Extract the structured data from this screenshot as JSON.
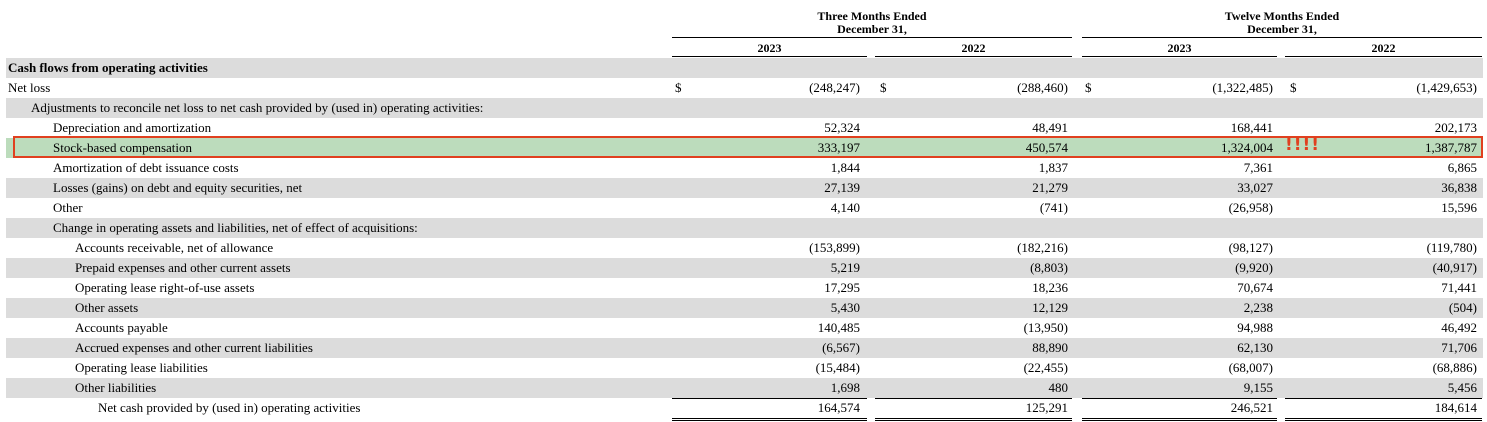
{
  "header": {
    "three_months": "Three Months Ended\nDecember 31,",
    "twelve_months": "Twelve Months Ended\nDecember 31,",
    "years": [
      "2023",
      "2022",
      "2023",
      "2022"
    ]
  },
  "currency_symbol": "$",
  "annotation_mark": "!!!!",
  "rows": [
    {
      "label": "Cash flows from operating activities",
      "indent": 0,
      "bold": true,
      "values": []
    },
    {
      "label": "Net loss",
      "indent": 0,
      "dollar": true,
      "values": [
        "(248,247)",
        "(288,460)",
        "(1,322,485)",
        "(1,429,653)"
      ]
    },
    {
      "label": "Adjustments to reconcile net loss to net cash provided by (used in) operating activities:",
      "indent": 1,
      "values": []
    },
    {
      "label": "Depreciation and amortization",
      "indent": 2,
      "values": [
        "52,324",
        "48,491",
        "168,441",
        "202,173"
      ]
    },
    {
      "label": "Stock-based compensation",
      "indent": 2,
      "highlight": true,
      "values": [
        "333,197",
        "450,574",
        "1,324,004",
        "1,387,787"
      ]
    },
    {
      "label": "Amortization of debt issuance costs",
      "indent": 2,
      "values": [
        "1,844",
        "1,837",
        "7,361",
        "6,865"
      ]
    },
    {
      "label": "Losses (gains) on debt and equity securities, net",
      "indent": 2,
      "values": [
        "27,139",
        "21,279",
        "33,027",
        "36,838"
      ]
    },
    {
      "label": "Other",
      "indent": 2,
      "values": [
        "4,140",
        "(741)",
        "(26,958)",
        "15,596"
      ]
    },
    {
      "label": "Change in operating assets and liabilities, net of effect of acquisitions:",
      "indent": 2,
      "values": []
    },
    {
      "label": "Accounts receivable, net of allowance",
      "indent": 3,
      "values": [
        "(153,899)",
        "(182,216)",
        "(98,127)",
        "(119,780)"
      ]
    },
    {
      "label": "Prepaid expenses and other current assets",
      "indent": 3,
      "values": [
        "5,219",
        "(8,803)",
        "(9,920)",
        "(40,917)"
      ]
    },
    {
      "label": "Operating lease right-of-use assets",
      "indent": 3,
      "values": [
        "17,295",
        "18,236",
        "70,674",
        "71,441"
      ]
    },
    {
      "label": "Other assets",
      "indent": 3,
      "values": [
        "5,430",
        "12,129",
        "2,238",
        "(504)"
      ]
    },
    {
      "label": "Accounts payable",
      "indent": 3,
      "values": [
        "140,485",
        "(13,950)",
        "94,988",
        "46,492"
      ]
    },
    {
      "label": "Accrued expenses and other current liabilities",
      "indent": 3,
      "values": [
        "(6,567)",
        "88,890",
        "62,130",
        "71,706"
      ]
    },
    {
      "label": "Operating lease liabilities",
      "indent": 3,
      "values": [
        "(15,484)",
        "(22,455)",
        "(68,007)",
        "(68,886)"
      ]
    },
    {
      "label": "Other liabilities",
      "indent": 3,
      "values": [
        "1,698",
        "480",
        "9,155",
        "5,456"
      ]
    },
    {
      "label": "Net cash provided by (used in) operating activities",
      "indent": 4,
      "total": true,
      "values": [
        "164,574",
        "125,291",
        "246,521",
        "184,614"
      ]
    }
  ],
  "colors": {
    "shade": "#dcdcdc",
    "highlight_fill": "#bcdcbc",
    "highlight_border": "#e0401f"
  }
}
